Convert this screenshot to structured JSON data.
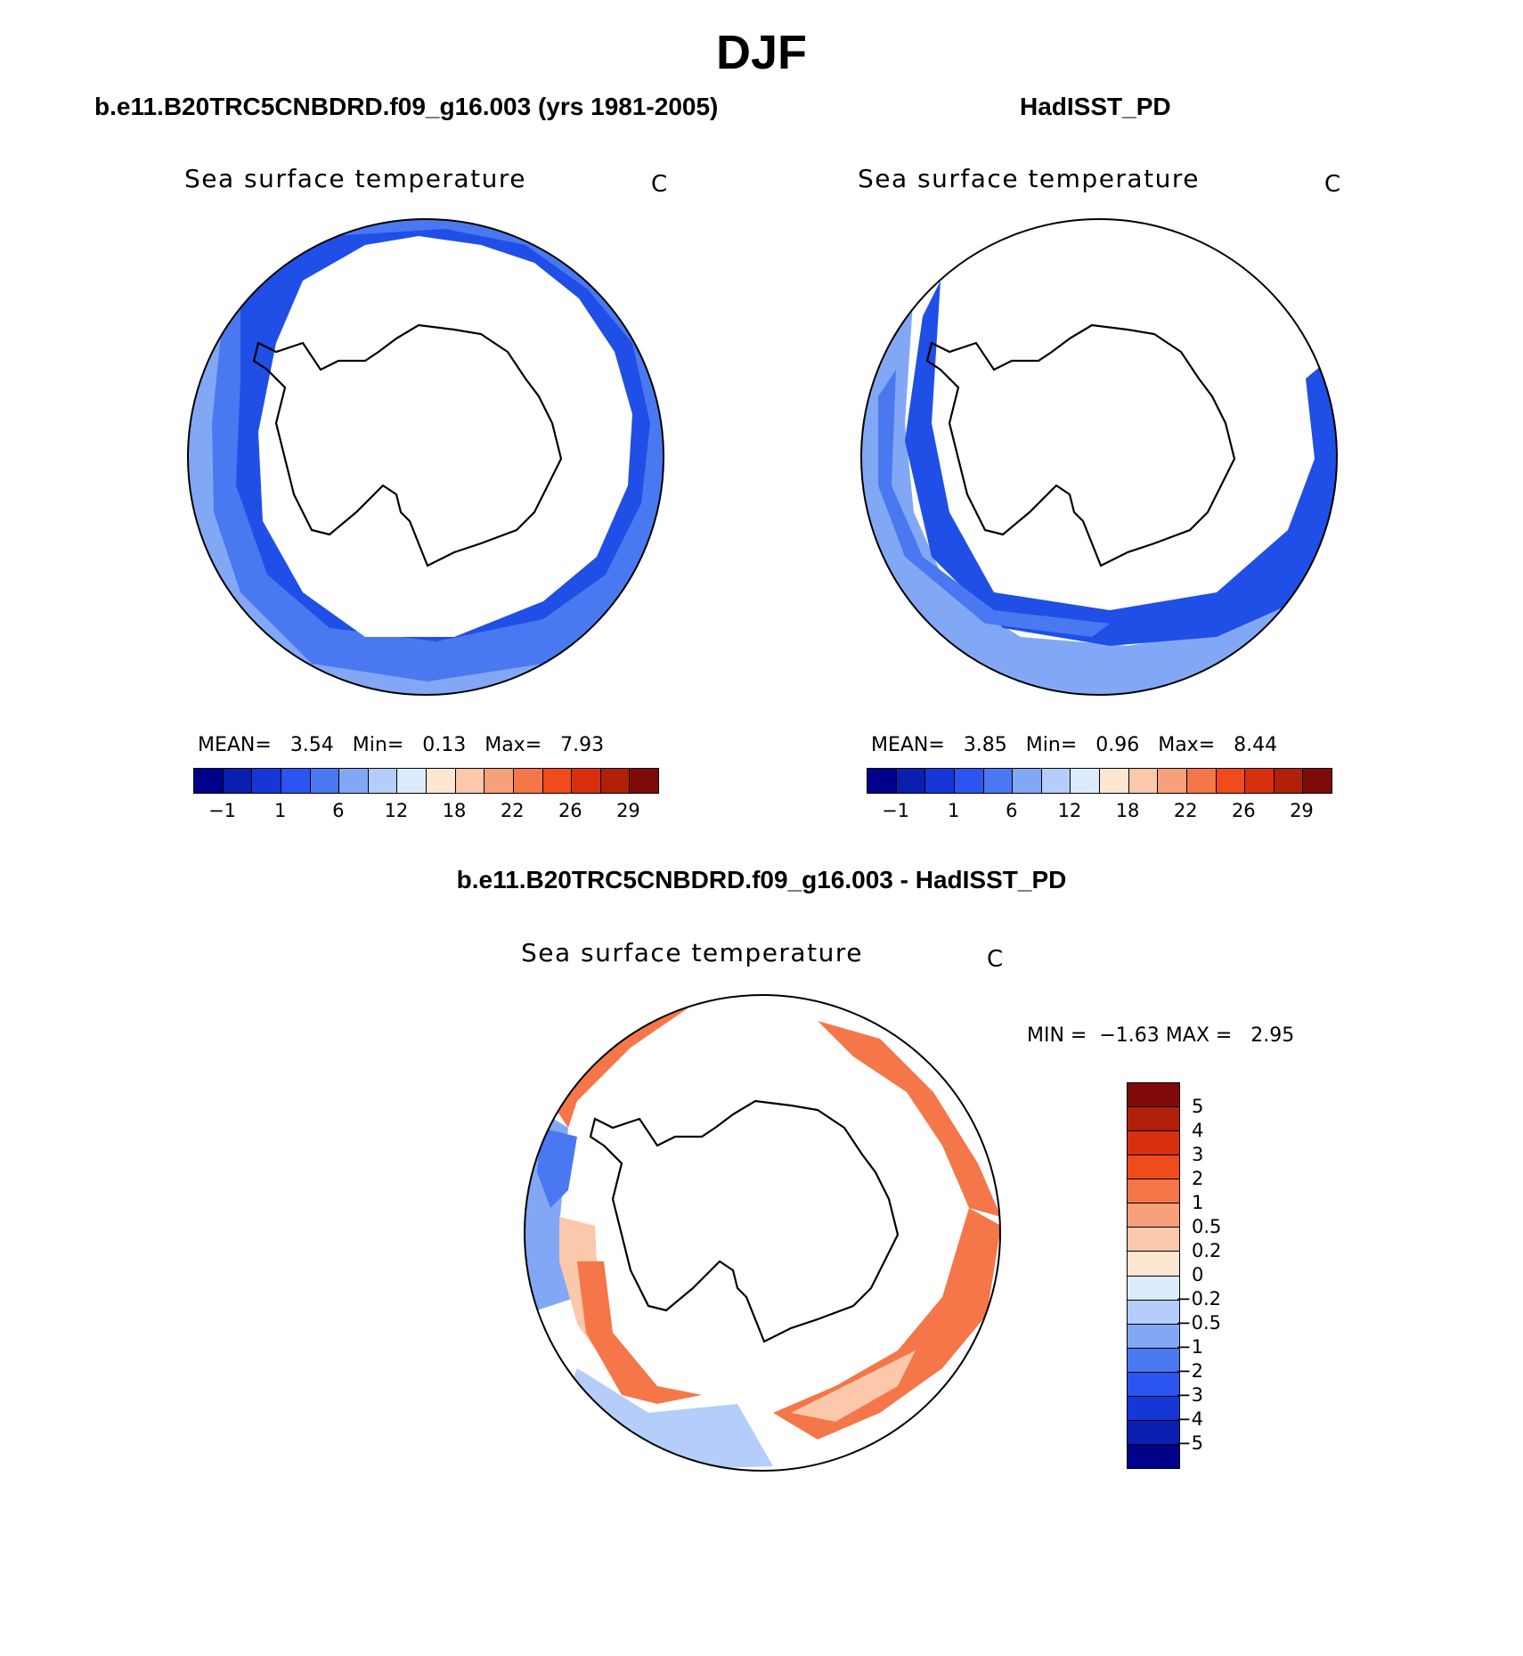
{
  "page_title": "DJF",
  "panels": {
    "model": {
      "case_title": "b.e11.B20TRC5CNBDRD.f09_g16.003 (yrs 1981-2005)",
      "variable": "Sea surface temperature",
      "units": "C",
      "stats": {
        "mean_label": "MEAN=",
        "mean": "3.54",
        "min_label": "Min=",
        "min": "0.13",
        "max_label": "Max=",
        "max": "7.93"
      }
    },
    "obs": {
      "case_title": "HadISST_PD",
      "variable": "Sea surface temperature",
      "units": "C",
      "stats": {
        "mean_label": "MEAN=",
        "mean": "3.85",
        "min_label": "Min=",
        "min": "0.96",
        "max_label": "Max=",
        "max": "8.44"
      }
    },
    "diff": {
      "case_title": "b.e11.B20TRC5CNBDRD.f09_g16.003 - HadISST_PD",
      "variable": "Sea surface temperature",
      "units": "C",
      "stats": {
        "min_label": "MIN =",
        "min": "−1.63",
        "max_label": "MAX =",
        "max": "2.95"
      }
    }
  },
  "colorbar_abs": {
    "colors": [
      "#00008a",
      "#0a1fb0",
      "#1537d8",
      "#2a55f0",
      "#4a78f0",
      "#82a8f5",
      "#b4cdfa",
      "#dcebfc",
      "#fde6d2",
      "#fbc8ac",
      "#f7a07c",
      "#f57648",
      "#ef4b1c",
      "#d8300c",
      "#b02008",
      "#7e0a0a"
    ],
    "labels": [
      "−1",
      "1",
      "6",
      "12",
      "18",
      "22",
      "26",
      "29"
    ]
  },
  "colorbar_diff": {
    "colors_top_to_bottom": [
      "#7e0a0a",
      "#b02008",
      "#d8300c",
      "#ef4b1c",
      "#f57648",
      "#f7a07c",
      "#fbc8ac",
      "#fde6d2",
      "#dcebfc",
      "#b4cdfa",
      "#82a8f5",
      "#4a78f0",
      "#2a55f0",
      "#1537d8",
      "#0a1fb0",
      "#00008a"
    ],
    "labels_top_to_bottom": [
      "5",
      "4",
      "3",
      "2",
      "1",
      "0.5",
      "0.2",
      "0",
      "−0.2",
      "−0.5",
      "−1",
      "−2",
      "−3",
      "−4",
      "−5"
    ]
  },
  "map_colors": {
    "ocean_deep": "#1f4fe6",
    "ocean_mid": "#4a78f0",
    "ocean_light": "#82a8f5",
    "warm_strong": "#f57648",
    "warm_light": "#fbc8ac",
    "cold_light": "#b4cdfa"
  }
}
